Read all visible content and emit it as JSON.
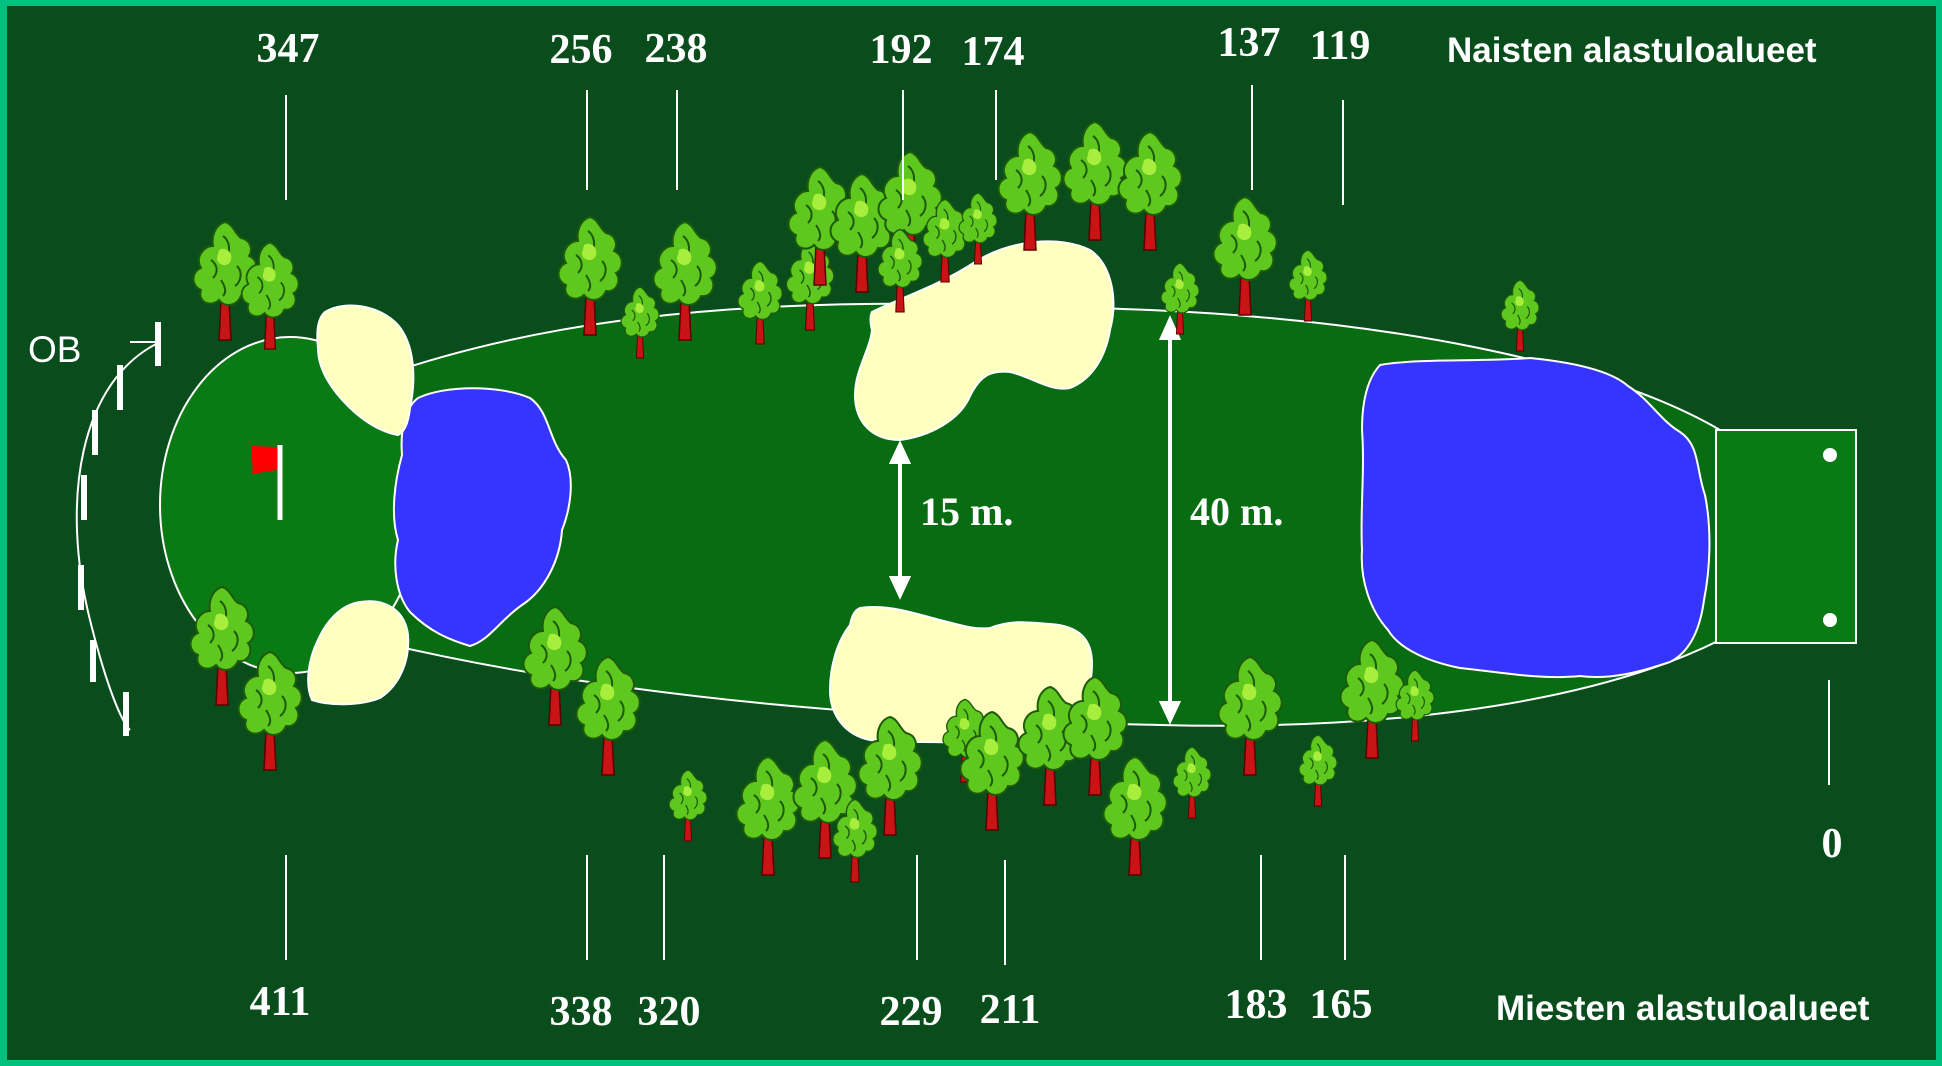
{
  "diagram": {
    "ob_label": "OB",
    "womens_label": "Naisten alastuloalueet",
    "mens_label": "Miesten alastuloalueet",
    "width_narrow": "15 m.",
    "width_wide": "40 m.",
    "womens_distances": [
      "347",
      "256",
      "238",
      "192",
      "174",
      "137",
      "119"
    ],
    "mens_distances": [
      "411",
      "338",
      "320",
      "229",
      "211",
      "183",
      "165"
    ],
    "tee_distance": "0"
  },
  "colors": {
    "border": "#00c080",
    "rough": "#0a4d1d",
    "fairway": "#086d12",
    "green": "#0a7a14",
    "water": "#3535ff",
    "bunker": "#ffffc0",
    "flag": "#ff0000"
  },
  "icons": {
    "tree": "tree-icon",
    "flag": "flag-icon",
    "tee_marker": "tee-marker-icon"
  }
}
